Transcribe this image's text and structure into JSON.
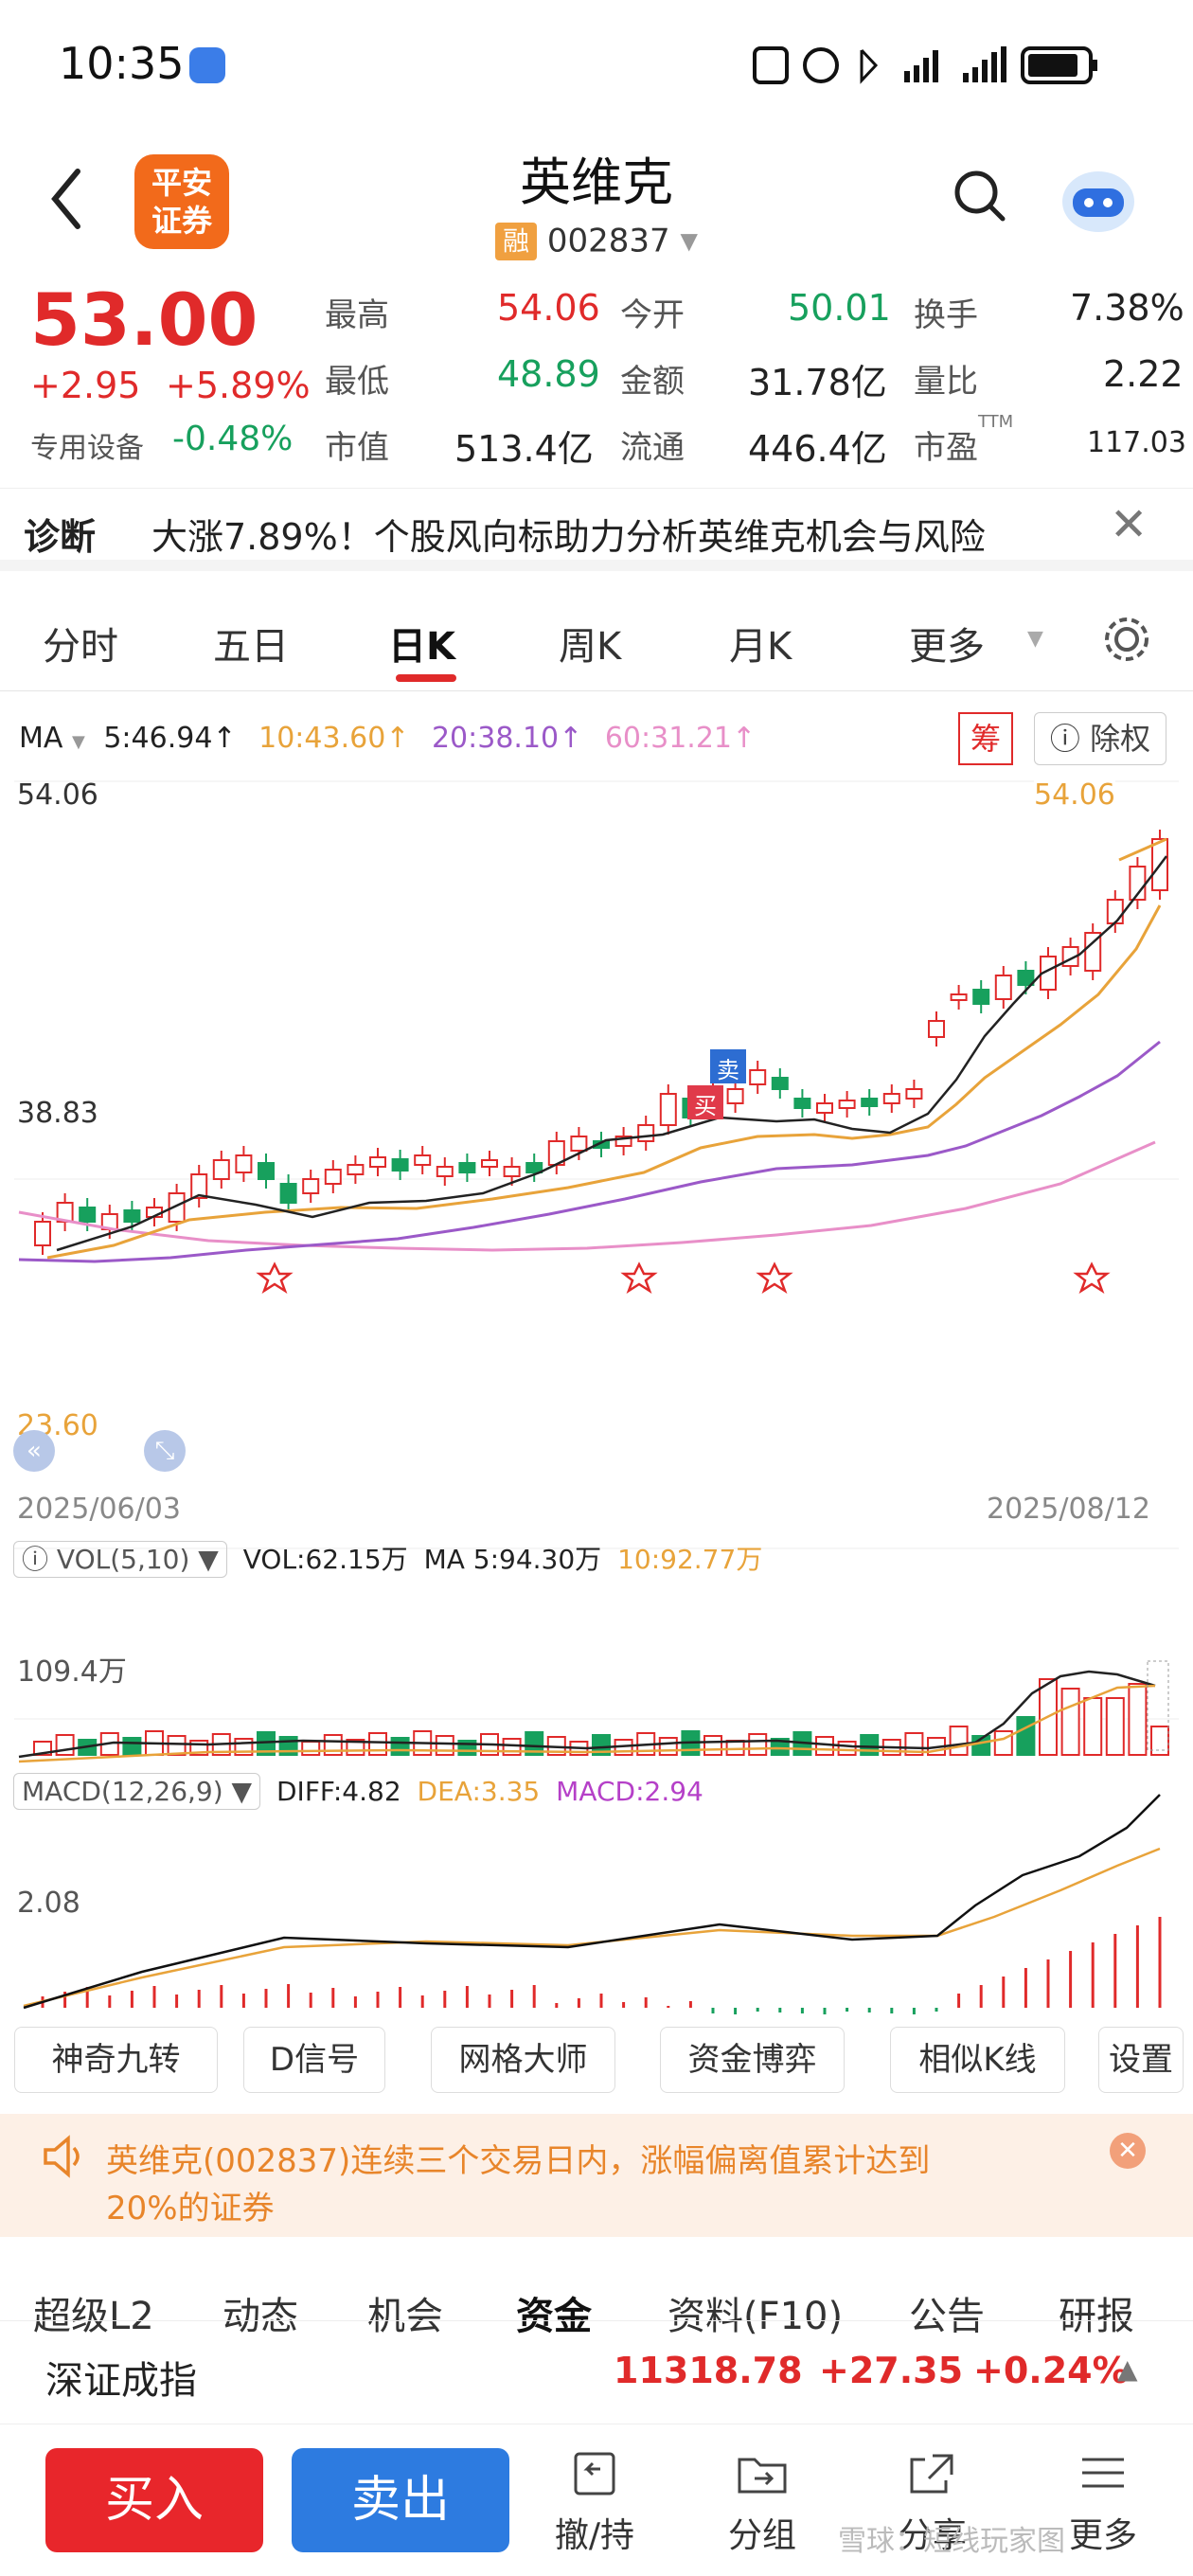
{
  "status": {
    "time": "10:35"
  },
  "header": {
    "logo_line1": "平安",
    "logo_line2": "证券",
    "stock_name": "英维克",
    "margin_tag": "融",
    "stock_code": "002837"
  },
  "quote": {
    "price": "53.00",
    "change": "+2.95",
    "change_pct": "+5.89%",
    "sector": "专用设备",
    "sector_pct": "-0.48%",
    "high_label": "最高",
    "high": "54.06",
    "low_label": "最低",
    "low": "48.89",
    "mcap_label": "市值",
    "mcap": "513.4亿",
    "open_label": "今开",
    "open": "50.01",
    "amount_label": "金额",
    "amount": "31.78亿",
    "float_label": "流通",
    "float": "446.4亿",
    "turnover_label": "换手",
    "turnover": "7.38%",
    "vol_ratio_label": "量比",
    "vol_ratio": "2.22",
    "pe_label": "市盈",
    "pe_sup": "TTM",
    "pe": "117.03"
  },
  "diagnosis": {
    "label": "诊断",
    "text": "大涨7.89%！个股风向标助力分析英维克机会与风险"
  },
  "tabs": [
    "分时",
    "五日",
    "日K",
    "周K",
    "月K",
    "更多"
  ],
  "active_tab": 2,
  "chart": {
    "ma_label": "MA",
    "ma5": "5:46.94↑",
    "ma10": "10:43.60↑",
    "ma20": "20:38.10↑",
    "ma60": "60:31.21↑",
    "chip_btn": "筹",
    "exright_btn": "除权",
    "y_top": "54.06",
    "y_mid": "38.83",
    "y_low": "23.60",
    "high_marker": "54.06",
    "buy_tag": "买",
    "sell_tag": "卖",
    "date_start": "2025/06/03",
    "date_end": "2025/08/12",
    "vol_label": "VOL(5,10)",
    "vol_val": "VOL:62.15万",
    "vol_ma5": "MA 5:94.30万",
    "vol_ma10": "10:92.77万",
    "vol_axis": "109.4万",
    "macd_label": "MACD(12,26,9)",
    "diff": "DIFF:4.82",
    "dea": "DEA:3.35",
    "macd": "MACD:2.94",
    "macd_axis": "2.08",
    "colors": {
      "up": "#e02a2a",
      "down": "#17a05d",
      "ma5": "#222222",
      "ma10": "#e8a33a",
      "ma20": "#9b59c8",
      "ma60": "#e88fc8"
    }
  },
  "chart_data": {
    "type": "candlestick",
    "date_range": [
      "2025/06/03",
      "2025/08/12"
    ],
    "ylim": [
      23.6,
      54.06
    ],
    "last": {
      "high": 54.06,
      "low": 48.89,
      "open": 50.01,
      "close": 53.0
    }
  },
  "tools": [
    "神奇九转",
    "D信号",
    "网格大师",
    "资金博弈",
    "相似K线",
    "设置"
  ],
  "notice": {
    "text1": "英维克(002837)连续三个交易日内，涨幅偏离值累计达到",
    "text2": "20%的证券"
  },
  "subtabs": [
    "超级L2",
    "动态",
    "机会",
    "资金",
    "资料(F10)",
    "公告",
    "研报"
  ],
  "index": {
    "name": "深证成指",
    "value": "11318.78",
    "change": "+27.35",
    "pct": "+0.24%"
  },
  "bottom": {
    "buy": "买入",
    "sell": "卖出",
    "nav": [
      "撤/持",
      "分组",
      "分享",
      "更多"
    ],
    "watermark": "雪球：短线玩家图"
  }
}
